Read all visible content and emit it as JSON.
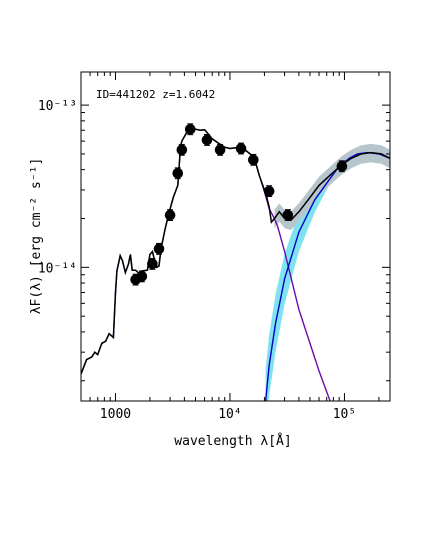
{
  "chart_data": {
    "type": "scatter",
    "title": "",
    "annotation": "ID=441202 z=1.6042",
    "xlabel": "wavelength λ[Å]",
    "ylabel": "λF(λ) [erg cm⁻² s⁻¹]",
    "x_scale": "log",
    "y_scale": "log",
    "xlim": [
      500,
      250000
    ],
    "ylim": [
      1.5e-15,
      1.6e-13
    ],
    "x_tick_labels": [
      {
        "value": 1000,
        "label": "1000"
      },
      {
        "value": 10000,
        "label": "10⁴"
      },
      {
        "value": 100000,
        "label": "10⁵"
      }
    ],
    "y_tick_labels": [
      {
        "value": 1e-13,
        "label": "10⁻¹³"
      },
      {
        "value": 1e-14,
        "label": "10⁻¹⁴"
      }
    ],
    "grid": false,
    "legend": "none",
    "colors": {
      "stellar": "#6a0dad",
      "dust": "#0000cc",
      "dust_band": "#7fe3ef",
      "total": "#000000",
      "total_band": "#b7c6cc",
      "points": "#000000"
    },
    "observed_points": {
      "x": [
        1500,
        1700,
        2100,
        2400,
        3000,
        3500,
        3800,
        4500,
        6300,
        8200,
        12500,
        16000,
        22000,
        32000,
        95000
      ],
      "y": [
        8.4e-15,
        8.8e-15,
        1.05e-14,
        1.3e-14,
        2.1e-14,
        3.8e-14,
        5.3e-14,
        7.1e-14,
        6.1e-14,
        5.3e-14,
        5.4e-14,
        4.6e-14,
        2.95e-14,
        2.1e-14,
        4.2e-14
      ]
    },
    "series": [
      {
        "x": [
          500,
          560,
          620,
          660,
          700,
          760,
          820,
          880,
          960,
          1000,
          1030,
          1100,
          1150,
          1220,
          1300,
          1350,
          1400,
          1500,
          1600,
          1700,
          1900,
          2000,
          2100,
          2200,
          2300,
          2400,
          2500,
          2700,
          2900,
          3200,
          3500,
          3700,
          3800,
          4000,
          4200,
          4500,
          5000,
          5500,
          6000,
          7000,
          8000,
          9000,
          10000,
          11000,
          12000,
          13500,
          15000,
          16500,
          18000,
          19500,
          21000,
          22000,
          24000,
          26000,
          30000,
          40000,
          60000,
          75000
        ],
        "y": [
          2.2e-15,
          2.7e-15,
          2.8e-15,
          3e-15,
          2.9e-15,
          3.4e-15,
          3.5e-15,
          3.9e-15,
          3.7e-15,
          7e-15,
          9.5e-15,
          1.18e-14,
          1.1e-14,
          9.3e-15,
          1.05e-14,
          1.2e-14,
          9.6e-15,
          9.6e-15,
          9.2e-15,
          9.5e-15,
          9.6e-15,
          1.2e-14,
          1.25e-14,
          1.1e-14,
          1e-14,
          1.02e-14,
          1.3e-14,
          1.7e-14,
          2.1e-14,
          2.7e-14,
          3.2e-14,
          5.5e-14,
          6e-14,
          6.4e-14,
          6.8e-14,
          7.05e-14,
          7.1e-14,
          7e-14,
          7.05e-14,
          6.2e-14,
          5.8e-14,
          5.5e-14,
          5.4e-14,
          5.45e-14,
          5.5e-14,
          5.3e-14,
          5e-14,
          4.6e-14,
          3.7e-14,
          3.1e-14,
          2.6e-14,
          2.3e-14,
          2.05e-14,
          1.8e-14,
          1.25e-14,
          5.5e-15,
          2.3e-15,
          1.5e-15
        ]
      },
      {
        "x": [
          20500,
          22000,
          25000,
          30000,
          40000,
          55000,
          70000,
          90000,
          110000,
          130000,
          160000,
          200000,
          250000
        ],
        "y": [
          1.5e-15,
          2.5e-15,
          4.5e-15,
          8.5e-15,
          1.65e-14,
          2.6e-14,
          3.3e-14,
          4.2e-14,
          4.7e-14,
          5e-14,
          5.1e-14,
          5e-14,
          4.7e-14
        ]
      },
      {
        "x": [
          500,
          560,
          620,
          660,
          700,
          760,
          820,
          880,
          960,
          1000,
          1030,
          1100,
          1150,
          1220,
          1300,
          1350,
          1400,
          1500,
          1600,
          1700,
          1900,
          2000,
          2100,
          2200,
          2300,
          2400,
          2500,
          2700,
          2900,
          3200,
          3500,
          3700,
          3800,
          4000,
          4200,
          4500,
          5000,
          5500,
          6000,
          7000,
          8000,
          9000,
          10000,
          11000,
          12000,
          13500,
          15000,
          16500,
          18000,
          19500,
          21000,
          22000,
          23000,
          24500,
          27000,
          30000,
          34000,
          40000,
          50000,
          60000,
          75000,
          95000,
          115000,
          140000,
          170000,
          210000,
          250000
        ],
        "y": [
          2.2e-15,
          2.7e-15,
          2.8e-15,
          3e-15,
          2.9e-15,
          3.4e-15,
          3.5e-15,
          3.9e-15,
          3.7e-15,
          7e-15,
          9.5e-15,
          1.18e-14,
          1.1e-14,
          9.3e-15,
          1.05e-14,
          1.2e-14,
          9.6e-15,
          9.6e-15,
          9.2e-15,
          9.5e-15,
          9.6e-15,
          1.2e-14,
          1.25e-14,
          1.1e-14,
          1e-14,
          1.02e-14,
          1.3e-14,
          1.7e-14,
          2.1e-14,
          2.7e-14,
          3.2e-14,
          5.5e-14,
          6e-14,
          6.4e-14,
          6.8e-14,
          7.05e-14,
          7.1e-14,
          7e-14,
          7.05e-14,
          6.2e-14,
          5.8e-14,
          5.5e-14,
          5.4e-14,
          5.45e-14,
          5.5e-14,
          5.3e-14,
          5e-14,
          4.6e-14,
          3.7e-14,
          3.15e-14,
          2.7e-14,
          2.35e-14,
          1.9e-14,
          2e-14,
          2.2e-14,
          2e-14,
          1.95e-14,
          2.2e-14,
          2.7e-14,
          3.2e-14,
          3.7e-14,
          4.3e-14,
          4.7e-14,
          5e-14,
          5.1e-14,
          5e-14,
          4.7e-14
        ]
      }
    ]
  }
}
